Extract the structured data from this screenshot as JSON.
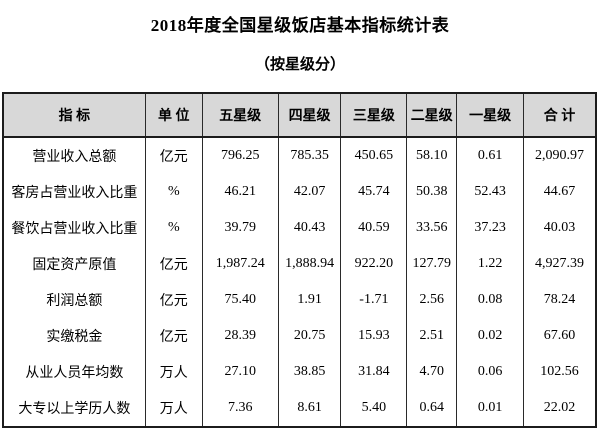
{
  "title": "2018年度全国星级饭店基本指标统计表",
  "subtitle": "（按星级分）",
  "colors": {
    "header_background": "#d8d8d8",
    "border": "#1c1c1c",
    "text": "#000000"
  },
  "table": {
    "columns": [
      "指 标",
      "单 位",
      "五星级",
      "四星级",
      "三星级",
      "二星级",
      "一星级",
      "合 计"
    ],
    "rows": [
      {
        "indicator": "营业收入总额",
        "unit": "亿元",
        "values": [
          "796.25",
          "785.35",
          "450.65",
          "58.10",
          "0.61",
          "2,090.97"
        ]
      },
      {
        "indicator": "客房占营业收入比重",
        "unit": "%",
        "values": [
          "46.21",
          "42.07",
          "45.74",
          "50.38",
          "52.43",
          "44.67"
        ]
      },
      {
        "indicator": "餐饮占营业收入比重",
        "unit": "%",
        "values": [
          "39.79",
          "40.43",
          "40.59",
          "33.56",
          "37.23",
          "40.03"
        ]
      },
      {
        "indicator": "固定资产原值",
        "unit": "亿元",
        "values": [
          "1,987.24",
          "1,888.94",
          "922.20",
          "127.79",
          "1.22",
          "4,927.39"
        ]
      },
      {
        "indicator": "利润总额",
        "unit": "亿元",
        "values": [
          "75.40",
          "1.91",
          "-1.71",
          "2.56",
          "0.08",
          "78.24"
        ]
      },
      {
        "indicator": "实缴税金",
        "unit": "亿元",
        "values": [
          "28.39",
          "20.75",
          "15.93",
          "2.51",
          "0.02",
          "67.60"
        ]
      },
      {
        "indicator": "从业人员年均数",
        "unit": "万人",
        "values": [
          "27.10",
          "38.85",
          "31.84",
          "4.70",
          "0.06",
          "102.56"
        ]
      },
      {
        "indicator": "大专以上学历人数",
        "unit": "万人",
        "values": [
          "7.36",
          "8.61",
          "5.40",
          "0.64",
          "0.01",
          "22.02"
        ]
      }
    ]
  }
}
